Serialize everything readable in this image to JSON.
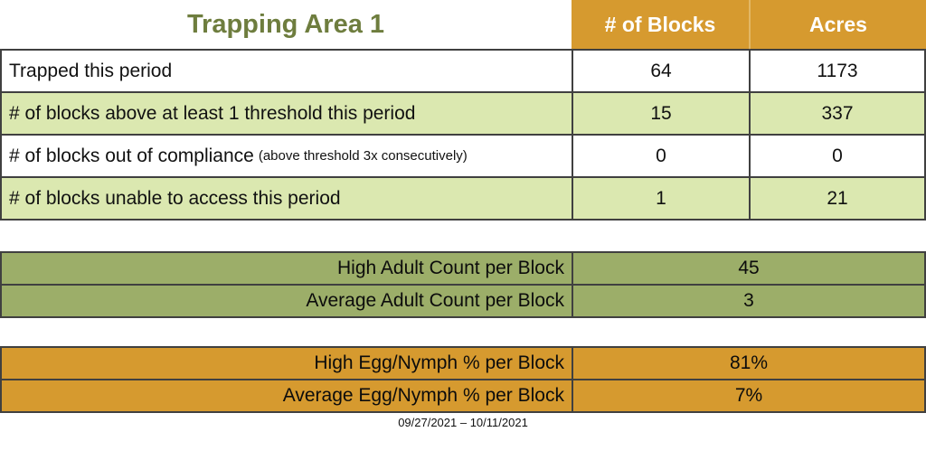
{
  "title": "Trapping Area 1",
  "main_table": {
    "col_headers": [
      "# of Blocks",
      "Acres"
    ],
    "rows": [
      {
        "label": "Trapped this period",
        "blocks": "64",
        "acres": "1173"
      },
      {
        "label": "# of blocks above at least 1 threshold this period",
        "blocks": "15",
        "acres": "337"
      },
      {
        "label": "# of blocks out of compliance",
        "note": "(above threshold 3x consecutively)",
        "blocks": "0",
        "acres": "0"
      },
      {
        "label": "# of blocks unable to access this period",
        "blocks": "1",
        "acres": "21"
      }
    ]
  },
  "adult_counts": {
    "rows": [
      {
        "label": "High Adult Count per Block",
        "value": "45"
      },
      {
        "label": "Average Adult Count per Block",
        "value": "3"
      }
    ]
  },
  "egg_nymph": {
    "rows": [
      {
        "label": "High Egg/Nymph % per Block",
        "value": "81%"
      },
      {
        "label": "Average Egg/Nymph % per Block",
        "value": "7%"
      }
    ]
  },
  "footer": {
    "date_range": "09/27/2021 – 10/11/2021"
  },
  "colors": {
    "header_orange": "#D69A2F",
    "light_green_row": "#DBE8B0",
    "olive_green": "#9CAE69",
    "title_green": "#6E7D3E",
    "border_dark": "#404040",
    "header_text": "#FFFFFF"
  }
}
